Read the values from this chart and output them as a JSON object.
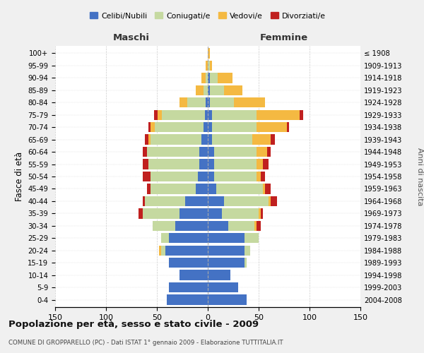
{
  "age_groups": [
    "0-4",
    "5-9",
    "10-14",
    "15-19",
    "20-24",
    "25-29",
    "30-34",
    "35-39",
    "40-44",
    "45-49",
    "50-54",
    "55-59",
    "60-64",
    "65-69",
    "70-74",
    "75-79",
    "80-84",
    "85-89",
    "90-94",
    "95-99",
    "100+"
  ],
  "birth_years": [
    "2004-2008",
    "1999-2003",
    "1994-1998",
    "1989-1993",
    "1984-1988",
    "1979-1983",
    "1974-1978",
    "1969-1973",
    "1964-1968",
    "1959-1963",
    "1954-1958",
    "1949-1953",
    "1944-1948",
    "1939-1943",
    "1934-1938",
    "1929-1933",
    "1924-1928",
    "1919-1923",
    "1914-1918",
    "1909-1913",
    "≤ 1908"
  ],
  "male": {
    "celibi": [
      40,
      38,
      28,
      38,
      42,
      38,
      32,
      28,
      22,
      12,
      10,
      8,
      8,
      6,
      4,
      3,
      2,
      0,
      0,
      0,
      0
    ],
    "coniugati": [
      0,
      0,
      0,
      0,
      4,
      8,
      22,
      36,
      40,
      44,
      46,
      50,
      52,
      50,
      48,
      42,
      18,
      4,
      2,
      0,
      0
    ],
    "vedovi": [
      0,
      0,
      0,
      0,
      2,
      0,
      0,
      0,
      0,
      0,
      0,
      0,
      0,
      2,
      4,
      4,
      8,
      8,
      4,
      2,
      0
    ],
    "divorziati": [
      0,
      0,
      0,
      0,
      0,
      0,
      0,
      4,
      2,
      4,
      8,
      6,
      4,
      4,
      2,
      4,
      0,
      0,
      0,
      0,
      0
    ]
  },
  "female": {
    "nubili": [
      38,
      30,
      22,
      36,
      36,
      36,
      20,
      14,
      16,
      8,
      6,
      6,
      6,
      4,
      4,
      4,
      2,
      2,
      2,
      0,
      0
    ],
    "coniugate": [
      0,
      0,
      0,
      2,
      6,
      14,
      26,
      36,
      44,
      46,
      42,
      42,
      42,
      40,
      44,
      44,
      24,
      14,
      8,
      2,
      0
    ],
    "vedove": [
      0,
      0,
      0,
      0,
      0,
      0,
      2,
      2,
      2,
      2,
      4,
      6,
      10,
      18,
      30,
      42,
      30,
      18,
      14,
      2,
      2
    ],
    "divorziate": [
      0,
      0,
      0,
      0,
      0,
      0,
      4,
      2,
      6,
      6,
      4,
      6,
      4,
      4,
      2,
      4,
      0,
      0,
      0,
      0,
      0
    ]
  },
  "colors": {
    "celibi": "#4472C4",
    "coniugati": "#C5D9A0",
    "vedovi": "#F4B942",
    "divorziati": "#C0201F"
  },
  "title": "Popolazione per età, sesso e stato civile - 2009",
  "subtitle": "COMUNE DI GROPPARELLO (PC) - Dati ISTAT 1° gennaio 2009 - Elaborazione TUTTITALIA.IT",
  "ylabel_left": "Fasce di età",
  "ylabel_right": "Anni di nascita",
  "xlabel_male": "Maschi",
  "xlabel_female": "Femmine",
  "xlim": 150,
  "legend_labels": [
    "Celibi/Nubili",
    "Coniugati/e",
    "Vedovi/e",
    "Divorziati/e"
  ],
  "bg_color": "#f0f0f0",
  "plot_bg": "#ffffff"
}
